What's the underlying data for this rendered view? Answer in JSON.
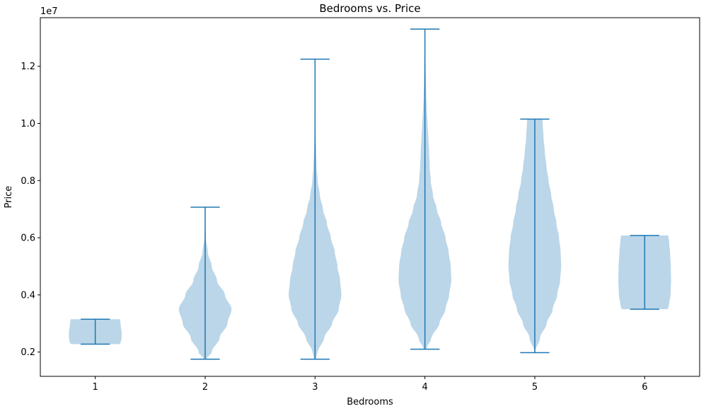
{
  "chart_data": {
    "type": "violin",
    "title": "Bedrooms vs. Price",
    "xlabel": "Bedrooms",
    "ylabel": "Price",
    "y_offset_label": "1e7",
    "y_scale": 10000000,
    "ylim": [
      1150000,
      13700000
    ],
    "xlim": [
      0.5,
      6.5
    ],
    "categories": [
      "1",
      "2",
      "3",
      "4",
      "5",
      "6"
    ],
    "y_ticks": [
      2000000,
      4000000,
      6000000,
      8000000,
      10000000,
      12000000
    ],
    "y_tick_labels": [
      "0.2",
      "0.4",
      "0.6",
      "0.8",
      "1.0",
      "1.2"
    ],
    "violins": [
      {
        "category": "1",
        "min": 2275000,
        "max": 3150000,
        "density": [
          [
            2275000,
            0.92
          ],
          [
            2350000,
            0.97
          ],
          [
            2500000,
            1.0
          ],
          [
            2700000,
            1.0
          ],
          [
            2900000,
            0.97
          ],
          [
            3050000,
            0.95
          ],
          [
            3150000,
            0.94
          ]
        ]
      },
      {
        "category": "2",
        "min": 1750000,
        "max": 7070000,
        "density": [
          [
            1750000,
            0.05
          ],
          [
            2000000,
            0.25
          ],
          [
            2500000,
            0.55
          ],
          [
            3000000,
            0.85
          ],
          [
            3500000,
            1.0
          ],
          [
            4000000,
            0.75
          ],
          [
            4500000,
            0.45
          ],
          [
            5000000,
            0.25
          ],
          [
            5500000,
            0.1
          ],
          [
            6000000,
            0.03
          ],
          [
            6500000,
            0.01
          ],
          [
            7070000,
            0.0
          ]
        ]
      },
      {
        "category": "3",
        "min": 1750000,
        "max": 12250000,
        "density": [
          [
            1750000,
            0.03
          ],
          [
            2000000,
            0.1
          ],
          [
            2500000,
            0.35
          ],
          [
            3000000,
            0.65
          ],
          [
            3500000,
            0.9
          ],
          [
            4000000,
            1.0
          ],
          [
            4500000,
            0.95
          ],
          [
            5000000,
            0.85
          ],
          [
            5500000,
            0.75
          ],
          [
            6000000,
            0.6
          ],
          [
            6500000,
            0.45
          ],
          [
            7000000,
            0.3
          ],
          [
            7500000,
            0.18
          ],
          [
            8000000,
            0.1
          ],
          [
            8500000,
            0.06
          ],
          [
            9000000,
            0.04
          ],
          [
            9500000,
            0.025
          ],
          [
            10000000,
            0.012
          ],
          [
            10500000,
            0.006
          ],
          [
            11000000,
            0.003
          ],
          [
            11500000,
            0.002
          ],
          [
            12250000,
            0.0
          ]
        ]
      },
      {
        "category": "4",
        "min": 2100000,
        "max": 13300000,
        "density": [
          [
            2100000,
            0.05
          ],
          [
            2500000,
            0.25
          ],
          [
            3000000,
            0.55
          ],
          [
            3500000,
            0.78
          ],
          [
            4000000,
            0.92
          ],
          [
            4500000,
            1.0
          ],
          [
            5000000,
            0.98
          ],
          [
            5500000,
            0.9
          ],
          [
            6000000,
            0.78
          ],
          [
            6500000,
            0.62
          ],
          [
            7000000,
            0.45
          ],
          [
            7500000,
            0.3
          ],
          [
            8000000,
            0.22
          ],
          [
            8500000,
            0.18
          ],
          [
            9000000,
            0.16
          ],
          [
            9500000,
            0.13
          ],
          [
            10000000,
            0.1
          ],
          [
            10500000,
            0.07
          ],
          [
            11000000,
            0.05
          ],
          [
            11500000,
            0.035
          ],
          [
            12000000,
            0.025
          ],
          [
            12500000,
            0.015
          ],
          [
            13000000,
            0.008
          ],
          [
            13300000,
            0.005
          ]
        ]
      },
      {
        "category": "5",
        "min": 1980000,
        "max": 10150000,
        "density": [
          [
            1980000,
            0.0
          ],
          [
            2500000,
            0.2
          ],
          [
            3000000,
            0.45
          ],
          [
            3500000,
            0.68
          ],
          [
            4000000,
            0.85
          ],
          [
            4500000,
            0.96
          ],
          [
            5000000,
            1.0
          ],
          [
            5500000,
            0.98
          ],
          [
            6000000,
            0.92
          ],
          [
            6500000,
            0.82
          ],
          [
            7000000,
            0.72
          ],
          [
            7500000,
            0.62
          ],
          [
            8000000,
            0.52
          ],
          [
            8500000,
            0.44
          ],
          [
            9000000,
            0.38
          ],
          [
            9500000,
            0.33
          ],
          [
            10000000,
            0.3
          ],
          [
            10150000,
            0.29
          ]
        ]
      },
      {
        "category": "6",
        "min": 3500000,
        "max": 6080000,
        "density": [
          [
            3500000,
            0.88
          ],
          [
            3700000,
            0.93
          ],
          [
            4000000,
            0.98
          ],
          [
            4500000,
            1.0
          ],
          [
            5000000,
            0.99
          ],
          [
            5500000,
            0.96
          ],
          [
            5800000,
            0.93
          ],
          [
            6080000,
            0.9
          ]
        ]
      }
    ],
    "colors": {
      "fill": "#1f77b4",
      "fill_opacity": 0.3,
      "line": "#1f77b4",
      "axis": "#000000"
    },
    "grid": false,
    "legend": "none"
  }
}
